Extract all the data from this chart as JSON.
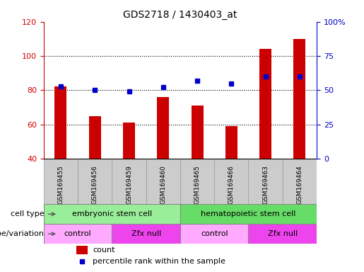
{
  "title": "GDS2718 / 1430403_at",
  "samples": [
    "GSM169455",
    "GSM169456",
    "GSM169459",
    "GSM169460",
    "GSM169465",
    "GSM169466",
    "GSM169463",
    "GSM169464"
  ],
  "counts": [
    82,
    65,
    61,
    76,
    71,
    59,
    104,
    110
  ],
  "percentile_ranks": [
    53,
    50,
    49,
    52,
    57,
    55,
    60,
    60
  ],
  "ylim_left": [
    40,
    120
  ],
  "ylim_right": [
    0,
    100
  ],
  "yticks_left": [
    40,
    60,
    80,
    100,
    120
  ],
  "yticks_right": [
    0,
    25,
    50,
    75,
    100
  ],
  "ytick_labels_right": [
    "0",
    "25",
    "50",
    "75",
    "100%"
  ],
  "bar_color": "#cc0000",
  "dot_color": "#0000cc",
  "cell_type_groups": [
    {
      "label": "embryonic stem cell",
      "start": 0,
      "end": 4,
      "color": "#99ee99"
    },
    {
      "label": "hematopoietic stem cell",
      "start": 4,
      "end": 8,
      "color": "#66dd66"
    }
  ],
  "genotype_groups": [
    {
      "label": "control",
      "start": 0,
      "end": 2,
      "color": "#ffaaff"
    },
    {
      "label": "Zfx null",
      "start": 2,
      "end": 4,
      "color": "#ee44ee"
    },
    {
      "label": "control",
      "start": 4,
      "end": 6,
      "color": "#ffaaff"
    },
    {
      "label": "Zfx null",
      "start": 6,
      "end": 8,
      "color": "#ee44ee"
    }
  ],
  "legend_count_label": "count",
  "legend_pct_label": "percentile rank within the sample",
  "cell_type_label": "cell type",
  "genotype_label": "genotype/variation",
  "tick_color_left": "#cc0000",
  "tick_color_right": "#0000cc",
  "bg_color": "#ffffff",
  "xtick_bg": "#cccccc",
  "border_color": "#000000"
}
